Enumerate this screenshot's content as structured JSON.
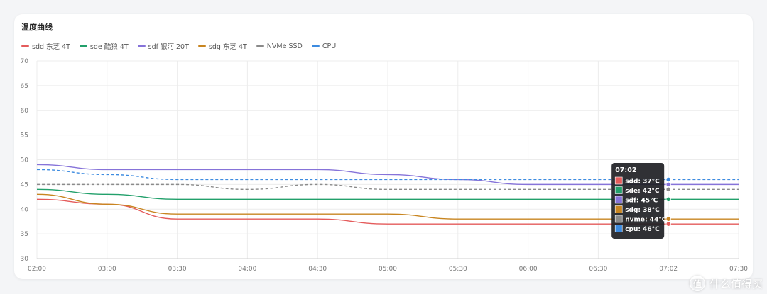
{
  "card": {
    "title": "温度曲线"
  },
  "chart_data": {
    "type": "line",
    "categories": [
      "02:00",
      "03:00",
      "03:30",
      "04:00",
      "04:30",
      "05:00",
      "05:30",
      "06:00",
      "06:30",
      "07:02",
      "07:30"
    ],
    "ylim": [
      30,
      70
    ],
    "yticks": [
      30,
      35,
      40,
      45,
      50,
      55,
      60,
      65,
      70
    ],
    "grid": true,
    "legend_position": "top-left",
    "series": [
      {
        "key": "sdd",
        "name": "sdd 东芝 4T",
        "color": "#e45b5b",
        "dashed": false,
        "values": [
          42,
          41,
          38,
          38,
          38,
          37,
          37,
          37,
          37,
          37,
          37
        ]
      },
      {
        "key": "sde",
        "name": "sde 酷狼 4T",
        "color": "#22a06b",
        "dashed": false,
        "values": [
          44,
          43,
          42,
          42,
          42,
          42,
          42,
          42,
          42,
          42,
          42
        ]
      },
      {
        "key": "sdf",
        "name": "sdf 银河 20T",
        "color": "#8673d9",
        "dashed": false,
        "values": [
          49,
          48,
          48,
          48,
          48,
          47,
          46,
          45,
          45,
          45,
          45
        ]
      },
      {
        "key": "sdg",
        "name": "sdg 东芝 4T",
        "color": "#c88520",
        "dashed": false,
        "values": [
          43,
          41,
          39,
          39,
          39,
          39,
          38,
          38,
          38,
          38,
          38
        ]
      },
      {
        "key": "nvme",
        "name": "NVMe SSD",
        "color": "#8a8a8a",
        "dashed": true,
        "values": [
          45,
          45,
          45,
          44,
          45,
          44,
          44,
          44,
          44,
          44,
          44
        ]
      },
      {
        "key": "cpu",
        "name": "CPU",
        "color": "#3d8be0",
        "dashed": true,
        "values": [
          48,
          47,
          46,
          46,
          46,
          46,
          46,
          46,
          46,
          46,
          46
        ]
      }
    ],
    "tooltip": {
      "category": "07:02",
      "title": "07:02",
      "rows": [
        {
          "label": "sdd: 37°C",
          "color": "#e45b5b"
        },
        {
          "label": "sde: 42°C",
          "color": "#22a06b"
        },
        {
          "label": "sdf: 45°C",
          "color": "#8673d9"
        },
        {
          "label": "sdg: 38°C",
          "color": "#c88520"
        },
        {
          "label": "nvme: 44°C",
          "color": "#8a8a8a"
        },
        {
          "label": "cpu: 46°C",
          "color": "#3d8be0"
        }
      ]
    }
  },
  "watermark": {
    "logo": "值",
    "text": "什么值得买"
  }
}
